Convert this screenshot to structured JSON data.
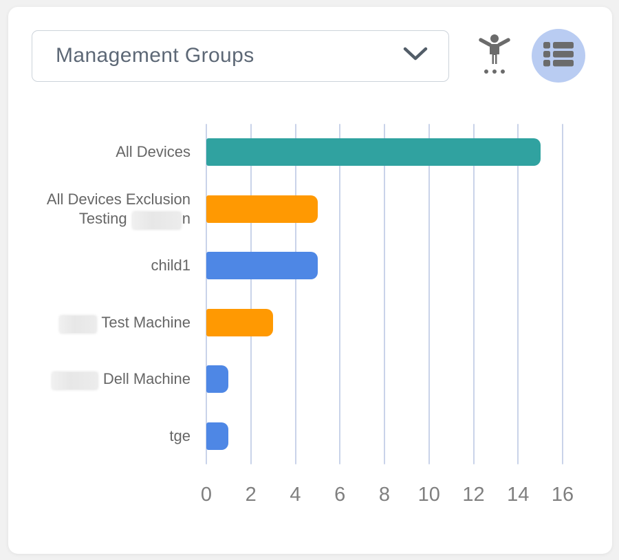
{
  "header": {
    "group_selector": {
      "value": "Management Groups",
      "chevron_icon": "chevron-down"
    },
    "accessibility_button": {
      "icon": "accessibility-person",
      "icon_color": "#6b6b6b"
    },
    "view_toggle_button": {
      "icon": "list-view",
      "icon_color": "#6b6b6b",
      "active": true,
      "active_bg": "#b9ccf2"
    }
  },
  "chart_data": {
    "type": "bar",
    "orientation": "horizontal",
    "title": "",
    "categories": [
      "All Devices",
      "All Devices Exclusion\nTesting ⟦r70⟧n",
      "child1",
      "⟦r53⟧ Test Machine",
      "⟦r66⟧ Dell Machine",
      "tge"
    ],
    "values": [
      15,
      5,
      5,
      3,
      1,
      1
    ],
    "bar_colors": [
      "#30a2a0",
      "#ff9902",
      "#4e87e5",
      "#ff9902",
      "#4e87e5",
      "#4e87e5"
    ],
    "xticks": [
      0,
      2,
      4,
      6,
      8,
      10,
      12,
      14,
      16
    ],
    "xlim": [
      0,
      16
    ],
    "xlabel": "",
    "ylabel": "",
    "grid": "vertical",
    "gridline_color": "#c9d3e9",
    "category_label_color": "#666666",
    "tick_label_color": "#7f7f7f",
    "legend": "none"
  }
}
